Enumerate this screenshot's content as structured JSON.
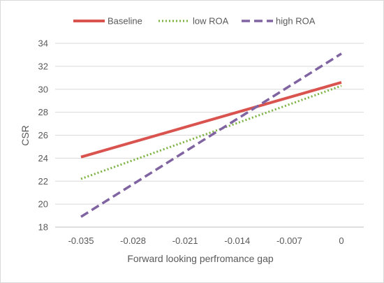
{
  "chart_data": {
    "type": "line",
    "x": [
      -0.035,
      0
    ],
    "categories": [
      "-0.035",
      "-0.028",
      "-0.021",
      "-0.014",
      "-0.007",
      "0"
    ],
    "series": [
      {
        "name": "Baseline",
        "values": [
          24.1,
          30.6
        ],
        "color": "#d9534f",
        "dash": "solid"
      },
      {
        "name": "low ROA",
        "values": [
          22.2,
          30.3
        ],
        "color": "#7cb342",
        "dash": "dotted"
      },
      {
        "name": "high ROA",
        "values": [
          18.9,
          33.1
        ],
        "color": "#8064a2",
        "dash": "dashed"
      }
    ],
    "title": "",
    "xlabel": "Forward  looking perfromance gap",
    "ylabel": "CSR",
    "xlim": [
      -0.035,
      0
    ],
    "ylim": [
      18,
      34
    ],
    "yticks": [
      18,
      20,
      22,
      24,
      26,
      28,
      30,
      32,
      34
    ],
    "grid": "horizontal",
    "legend_position": "top"
  }
}
